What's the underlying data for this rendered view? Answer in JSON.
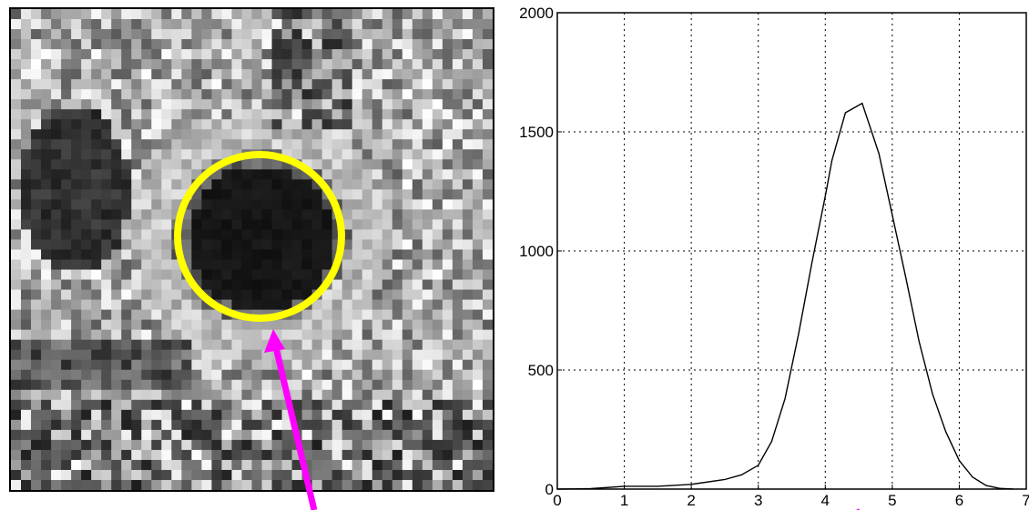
{
  "figure": {
    "circle_color": "#ffff00",
    "arrow_color": "#ff00ff",
    "image_description": "grayscale MRI patch"
  },
  "chart_data": {
    "type": "line",
    "title": "",
    "xlabel": "",
    "ylabel": "",
    "xlim": [
      0,
      7
    ],
    "ylim": [
      0,
      2000
    ],
    "grid": true,
    "x_ticks": [
      "0",
      "1",
      "2",
      "3",
      "4",
      "5",
      "6",
      "7"
    ],
    "y_ticks": [
      "0",
      "500",
      "1000",
      "1500",
      "2000"
    ],
    "series": [
      {
        "name": "",
        "color": "#000000",
        "x": [
          0,
          0.5,
          1.0,
          1.5,
          2.0,
          2.5,
          2.75,
          3.0,
          3.2,
          3.4,
          3.6,
          3.8,
          4.0,
          4.1,
          4.3,
          4.55,
          4.8,
          5.0,
          5.2,
          5.4,
          5.6,
          5.8,
          6.0,
          6.2,
          6.4,
          6.6,
          6.8
        ],
        "y": [
          0,
          2,
          12,
          12,
          20,
          40,
          60,
          100,
          200,
          380,
          650,
          950,
          1230,
          1380,
          1580,
          1620,
          1410,
          1150,
          890,
          620,
          400,
          240,
          120,
          50,
          15,
          3,
          0
        ]
      }
    ]
  }
}
